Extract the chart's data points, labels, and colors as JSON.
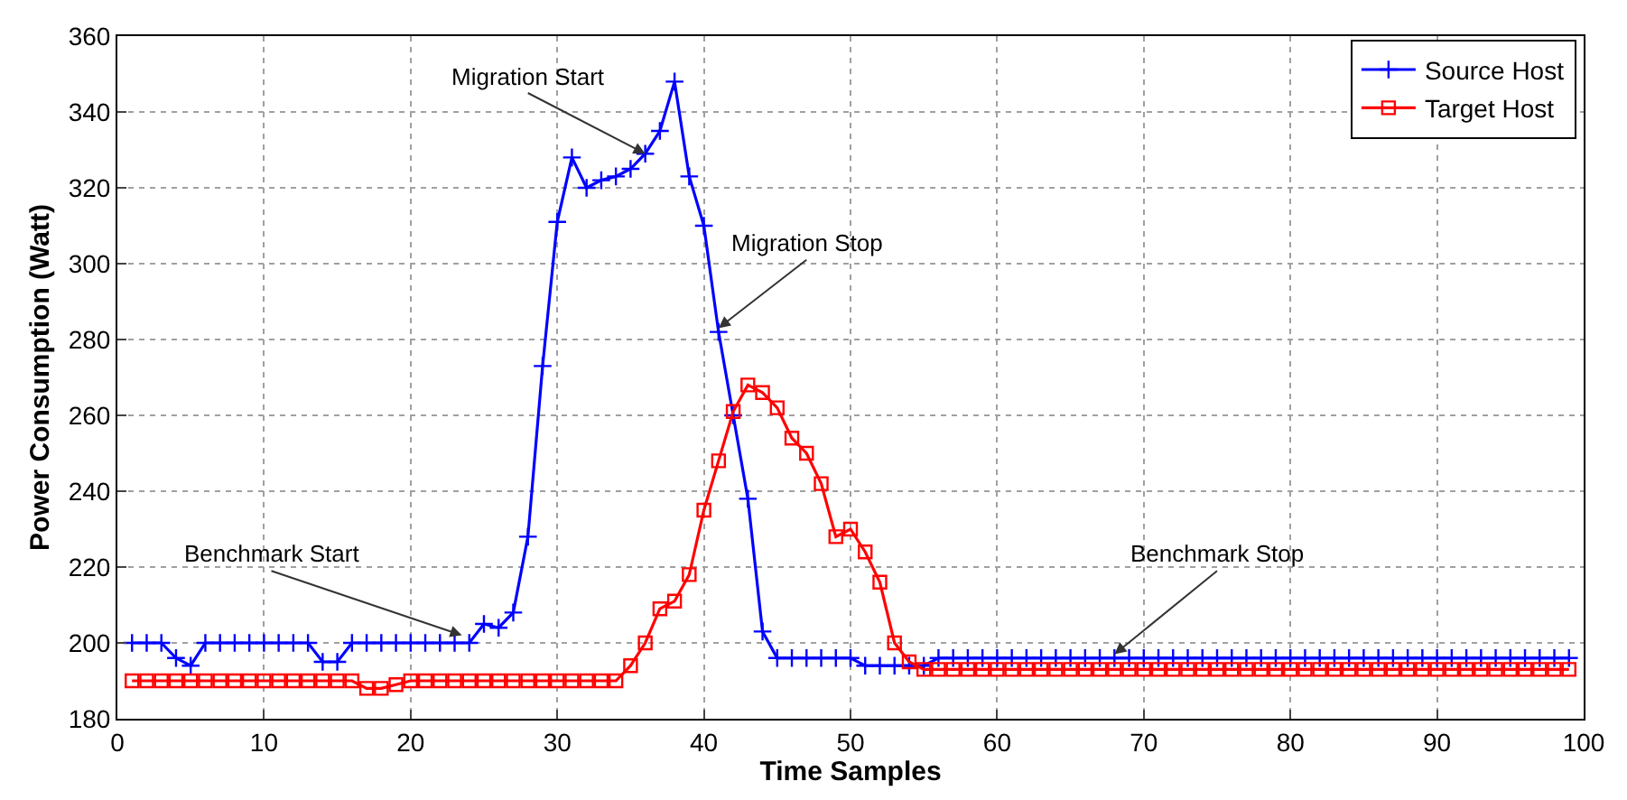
{
  "chart_data": {
    "type": "line",
    "xlabel": "Time Samples",
    "ylabel": "Power Consumption (Watt)",
    "x": [
      1,
      2,
      3,
      4,
      5,
      6,
      7,
      8,
      9,
      10,
      11,
      12,
      13,
      14,
      15,
      16,
      17,
      18,
      19,
      20,
      21,
      22,
      23,
      24,
      25,
      26,
      27,
      28,
      29,
      30,
      31,
      32,
      33,
      34,
      35,
      36,
      37,
      38,
      39,
      40,
      41,
      42,
      43,
      44,
      45,
      46,
      47,
      48,
      49,
      50,
      51,
      52,
      53,
      54,
      55,
      56,
      57,
      58,
      59,
      60,
      61,
      62,
      63,
      64,
      65,
      66,
      67,
      68,
      69,
      70,
      71,
      72,
      73,
      74,
      75,
      76,
      77,
      78,
      79,
      80,
      81,
      82,
      83,
      84,
      85,
      86,
      87,
      88,
      89,
      90,
      91,
      92,
      93,
      94,
      95,
      96,
      97,
      98,
      99
    ],
    "series": [
      {
        "name": "Source Host",
        "color": "#0000ff",
        "marker": "cross",
        "values": [
          200,
          200,
          200,
          196,
          194,
          200,
          200,
          200,
          200,
          200,
          200,
          200,
          200,
          195,
          195,
          200,
          200,
          200,
          200,
          200,
          200,
          200,
          200,
          200,
          205,
          204,
          208,
          228,
          273,
          311,
          328,
          320,
          322,
          323,
          325,
          329,
          335,
          348,
          323,
          310,
          282,
          260,
          238,
          203,
          196,
          196,
          196,
          196,
          196,
          196,
          194,
          194,
          194,
          194,
          194,
          196,
          196,
          196,
          196,
          196,
          196,
          196,
          196,
          196,
          196,
          196,
          196,
          196,
          196,
          196,
          196,
          196,
          196,
          196,
          196,
          196,
          196,
          196,
          196,
          196,
          196,
          196,
          196,
          196,
          196,
          196,
          196,
          196,
          196,
          196,
          196,
          196,
          196,
          196,
          196,
          196,
          196,
          196,
          196
        ]
      },
      {
        "name": "Target Host",
        "color": "#ff0000",
        "marker": "square",
        "values": [
          190,
          190,
          190,
          190,
          190,
          190,
          190,
          190,
          190,
          190,
          190,
          190,
          190,
          190,
          190,
          190,
          188,
          188,
          189,
          190,
          190,
          190,
          190,
          190,
          190,
          190,
          190,
          190,
          190,
          190,
          190,
          190,
          190,
          190,
          194,
          200,
          209,
          211,
          218,
          235,
          248,
          261,
          268,
          266,
          262,
          254,
          250,
          242,
          228,
          230,
          224,
          216,
          200,
          195,
          193,
          193,
          193,
          193,
          193,
          193,
          193,
          193,
          193,
          193,
          193,
          193,
          193,
          193,
          193,
          193,
          193,
          193,
          193,
          193,
          193,
          193,
          193,
          193,
          193,
          193,
          193,
          193,
          193,
          193,
          193,
          193,
          193,
          193,
          193,
          193,
          193,
          193,
          193,
          193,
          193,
          193,
          193,
          193,
          193
        ]
      }
    ],
    "xlim": [
      0,
      100
    ],
    "xticks": [
      0,
      10,
      20,
      30,
      40,
      50,
      60,
      70,
      80,
      90,
      100
    ],
    "ylim": [
      180,
      360
    ],
    "yticks": [
      180,
      200,
      220,
      240,
      260,
      280,
      300,
      320,
      340,
      360
    ],
    "grid": true,
    "legend": "top right",
    "line_style": "solid",
    "annotations": [
      {
        "text": "Migration Start",
        "x": 36,
        "y": 329
      },
      {
        "text": "Migration Stop",
        "x": 41,
        "y": 283
      },
      {
        "text": "Benchmark Start",
        "x": 23.5,
        "y": 202
      },
      {
        "text": "Benchmark Stop",
        "x": 68,
        "y": 197
      }
    ]
  }
}
